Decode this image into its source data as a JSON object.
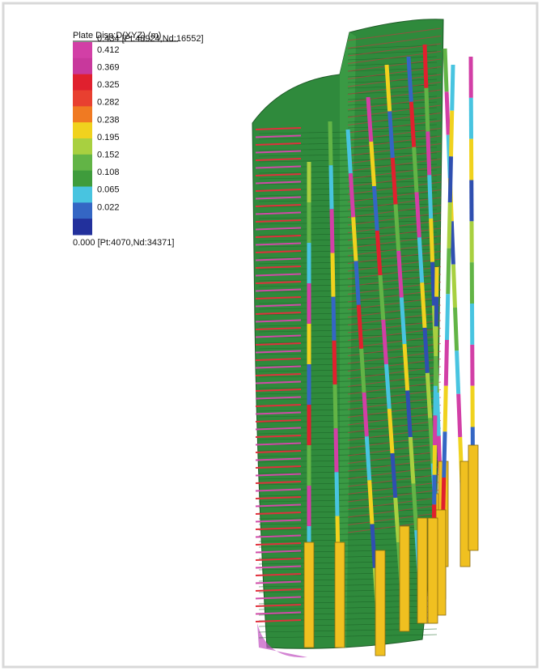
{
  "legend": {
    "title": "Plate Disp:D(XYZ) (m)",
    "max_label": "0.434 [Pt:48924,Nd:16552]",
    "labels": [
      "0.412",
      "0.369",
      "0.325",
      "0.282",
      "0.238",
      "0.195",
      "0.152",
      "0.108",
      "0.065",
      "0.022"
    ],
    "min_label": "0.000 [Pt:4070,Nd:34371]",
    "colors": [
      "#d23fa6",
      "#c8389c",
      "#e0202e",
      "#e84030",
      "#f07a22",
      "#f0d21e",
      "#a8d040",
      "#62b446",
      "#3f9c3c",
      "#48c4e0",
      "#3466c4",
      "#22309c"
    ]
  }
}
